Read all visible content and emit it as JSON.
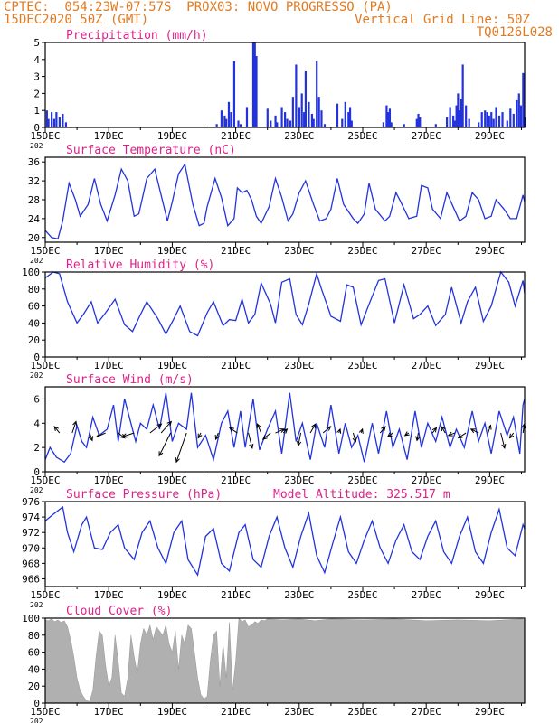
{
  "header": {
    "line1": "CPTEC:  054:23W-07:57S  PROX03: NOVO PROGRESSO (PA)",
    "line2_left": "15DEC2020 50Z (GMT)",
    "line2_right": "Vertical Grid Line: 50Z",
    "line3_right": "TQ0126L028"
  },
  "colors": {
    "header": "#e07b22",
    "title": "#e0208a",
    "line": "#2233dd",
    "bar": "#2233dd",
    "cloud": "#b0b0b0",
    "axis": "#000000"
  },
  "x_axis": {
    "tick_labels": [
      "15DEC",
      "17DEC",
      "19DEC",
      "21DEC",
      "23DEC",
      "25DEC",
      "27DEC",
      "29DEC"
    ],
    "year_fragment": "202",
    "range_days": [
      15,
      30.1
    ]
  },
  "chart_data": [
    {
      "type": "bar",
      "title": "Precipitation (mm/h)",
      "ylim": [
        0,
        5
      ],
      "yticks": [
        "0",
        "1",
        "2",
        "3",
        "4",
        "5"
      ],
      "x": [
        15.05,
        15.1,
        15.2,
        15.28,
        15.35,
        15.45,
        15.55,
        15.65,
        20.4,
        20.55,
        20.65,
        20.7,
        20.78,
        20.85,
        20.95,
        21.08,
        21.15,
        21.35,
        21.55,
        21.6,
        21.65,
        22.0,
        22.1,
        22.25,
        22.3,
        22.45,
        22.55,
        22.62,
        22.72,
        22.8,
        22.9,
        23.0,
        23.08,
        23.15,
        23.2,
        23.3,
        23.4,
        23.45,
        23.55,
        23.62,
        23.7,
        23.8,
        24.2,
        24.35,
        24.45,
        24.55,
        24.6,
        24.65,
        25.65,
        25.75,
        25.8,
        25.85,
        25.9,
        26.3,
        26.7,
        26.75,
        26.8,
        27.3,
        27.65,
        27.75,
        27.85,
        27.9,
        27.95,
        28.0,
        28.05,
        28.1,
        28.15,
        28.25,
        28.35,
        28.65,
        28.75,
        28.85,
        28.92,
        28.98,
        29.05,
        29.12,
        29.2,
        29.3,
        29.4,
        29.55,
        29.65,
        29.75,
        29.85,
        29.92,
        29.98,
        30.05,
        30.1
      ],
      "values": [
        1.0,
        0.5,
        0.9,
        0.5,
        0.9,
        0.6,
        0.8,
        0.3,
        0.2,
        1.0,
        0.7,
        0.5,
        1.5,
        0.9,
        3.9,
        0.4,
        0.2,
        1.2,
        5.0,
        5.0,
        4.2,
        1.1,
        0.4,
        0.7,
        0.3,
        1.2,
        0.9,
        0.5,
        0.4,
        1.8,
        3.7,
        1.2,
        2.0,
        0.9,
        3.3,
        1.5,
        0.8,
        0.5,
        3.9,
        1.8,
        1.0,
        0.2,
        1.4,
        0.5,
        1.5,
        0.9,
        1.2,
        0.4,
        0.3,
        1.3,
        0.9,
        1.1,
        0.3,
        0.2,
        0.5,
        0.8,
        0.6,
        0.2,
        0.6,
        1.2,
        0.7,
        0.4,
        1.3,
        2.0,
        1.0,
        1.7,
        3.7,
        1.3,
        0.5,
        0.3,
        0.9,
        1.0,
        0.9,
        0.7,
        0.9,
        0.5,
        1.2,
        0.7,
        0.9,
        0.4,
        1.1,
        0.8,
        1.6,
        2.0,
        1.3,
        3.2,
        0.6
      ]
    },
    {
      "type": "line",
      "title": "Surface Temperature (nC)",
      "ylim": [
        19,
        37
      ],
      "yticks": [
        "20",
        "24",
        "28",
        "32",
        "36"
      ],
      "x": [
        15.0,
        15.2,
        15.4,
        15.55,
        15.75,
        15.95,
        16.1,
        16.35,
        16.55,
        16.75,
        16.95,
        17.2,
        17.4,
        17.6,
        17.8,
        17.95,
        18.2,
        18.45,
        18.65,
        18.85,
        19.0,
        19.2,
        19.4,
        19.65,
        19.85,
        20.0,
        20.1,
        20.35,
        20.55,
        20.75,
        20.95,
        21.05,
        21.2,
        21.35,
        21.5,
        21.65,
        21.8,
        22.05,
        22.25,
        22.45,
        22.65,
        22.8,
        23.0,
        23.2,
        23.45,
        23.65,
        23.85,
        24.0,
        24.2,
        24.4,
        24.7,
        24.85,
        25.05,
        25.2,
        25.4,
        25.7,
        25.85,
        26.05,
        26.2,
        26.45,
        26.7,
        26.85,
        27.05,
        27.2,
        27.45,
        27.65,
        27.85,
        28.05,
        28.25,
        28.45,
        28.65,
        28.85,
        29.05,
        29.2,
        29.45,
        29.65,
        29.85,
        30.05,
        30.1
      ],
      "values": [
        21.5,
        20,
        19.7,
        23.5,
        31.5,
        28,
        24.5,
        27,
        32.5,
        27,
        23.5,
        29,
        34.5,
        32,
        24.5,
        25,
        32.5,
        34.5,
        29,
        23.5,
        27.5,
        33.5,
        35.5,
        27,
        22.5,
        23,
        26.5,
        32.5,
        28.5,
        22.5,
        24,
        30.5,
        29.5,
        30,
        28,
        24.5,
        23,
        26.5,
        32.5,
        28.5,
        23.5,
        25,
        29.5,
        32,
        27,
        23.5,
        24,
        26,
        32.5,
        27,
        24,
        23,
        25,
        31.5,
        26,
        23.5,
        24.5,
        29.5,
        27.5,
        24,
        24.5,
        31,
        30.5,
        26,
        24,
        29.5,
        26.5,
        23.5,
        24.5,
        29.5,
        28,
        24,
        24.5,
        28,
        26,
        24,
        24,
        29,
        27.5
      ]
    },
    {
      "type": "line",
      "title": "Relative Humidity (%)",
      "ylim": [
        0,
        100
      ],
      "yticks": [
        "0",
        "20",
        "40",
        "60",
        "80",
        "100"
      ],
      "x": [
        15.0,
        15.25,
        15.45,
        15.7,
        16.0,
        16.2,
        16.45,
        16.65,
        16.9,
        17.2,
        17.5,
        17.75,
        18.0,
        18.2,
        18.55,
        18.8,
        19.05,
        19.25,
        19.55,
        19.8,
        20.1,
        20.3,
        20.6,
        20.8,
        21.0,
        21.2,
        21.4,
        21.6,
        21.8,
        22.1,
        22.25,
        22.45,
        22.7,
        22.9,
        23.1,
        23.3,
        23.55,
        23.7,
        24.0,
        24.3,
        24.5,
        24.7,
        24.95,
        25.2,
        25.5,
        25.7,
        26.0,
        26.3,
        26.6,
        26.8,
        27.05,
        27.3,
        27.6,
        27.8,
        28.1,
        28.3,
        28.55,
        28.8,
        29.05,
        29.35,
        29.6,
        29.8,
        30.05,
        30.1
      ],
      "values": [
        93,
        100,
        98,
        65,
        40,
        50,
        65,
        40,
        52,
        68,
        38,
        30,
        50,
        65,
        45,
        27,
        45,
        60,
        30,
        25,
        52,
        65,
        37,
        44,
        43,
        68,
        40,
        50,
        87,
        62,
        40,
        88,
        92,
        50,
        38,
        62,
        98,
        80,
        48,
        42,
        85,
        82,
        38,
        62,
        90,
        92,
        40,
        85,
        45,
        50,
        60,
        37,
        50,
        82,
        40,
        65,
        82,
        42,
        60,
        100,
        88,
        60,
        90,
        75
      ]
    },
    {
      "type": "line",
      "title": "Surface Wind (m/s)",
      "ylim": [
        0,
        7
      ],
      "yticks": [
        "0",
        "2",
        "4",
        "6"
      ],
      "x": [
        15.0,
        15.15,
        15.35,
        15.6,
        15.8,
        16.0,
        16.15,
        16.3,
        16.5,
        16.7,
        16.95,
        17.15,
        17.3,
        17.5,
        17.65,
        17.85,
        18.0,
        18.2,
        18.4,
        18.6,
        18.8,
        19.0,
        19.2,
        19.45,
        19.6,
        19.8,
        20.05,
        20.3,
        20.55,
        20.75,
        20.95,
        21.15,
        21.3,
        21.55,
        21.75,
        22.0,
        22.25,
        22.45,
        22.7,
        22.9,
        23.1,
        23.35,
        23.55,
        23.8,
        24.0,
        24.25,
        24.45,
        24.65,
        24.85,
        25.05,
        25.3,
        25.5,
        25.75,
        25.95,
        26.15,
        26.4,
        26.65,
        26.85,
        27.05,
        27.3,
        27.5,
        27.75,
        27.95,
        28.2,
        28.45,
        28.65,
        28.85,
        29.05,
        29.3,
        29.55,
        29.75,
        29.95,
        30.05,
        30.1
      ],
      "values": [
        1.0,
        2.0,
        1.2,
        0.8,
        1.5,
        3.8,
        2.5,
        2.0,
        4.5,
        3.0,
        3.5,
        5.5,
        2.5,
        6.0,
        4.5,
        2.5,
        4.0,
        3.5,
        5.5,
        3.5,
        6.5,
        2.5,
        4.0,
        3.5,
        6.5,
        2.0,
        3.0,
        1.0,
        4.0,
        5.0,
        2.0,
        5.0,
        2.0,
        6.0,
        1.8,
        3.5,
        5.0,
        1.5,
        6.5,
        2.5,
        4.0,
        1.0,
        4.0,
        2.0,
        5.5,
        1.5,
        4.0,
        2.0,
        3.0,
        0.8,
        4.0,
        1.5,
        5.0,
        2.0,
        3.5,
        1.0,
        5.0,
        2.0,
        4.0,
        2.5,
        4.5,
        2.0,
        3.5,
        2.0,
        5.0,
        2.5,
        4.0,
        1.5,
        5.0,
        3.0,
        4.5,
        1.5,
        5.5,
        6.0
      ],
      "arrows": [
        {
          "x": 15.45,
          "u": -0.4,
          "v": 0.5
        },
        {
          "x": 15.85,
          "u": 0.3,
          "v": 0.9
        },
        {
          "x": 16.4,
          "u": 0.2,
          "v": -0.6
        },
        {
          "x": 16.9,
          "u": -0.7,
          "v": -0.3
        },
        {
          "x": 17.3,
          "u": 0.5,
          "v": -0.4
        },
        {
          "x": 17.8,
          "u": -0.9,
          "v": -0.3
        },
        {
          "x": 18.3,
          "u": 0.9,
          "v": 0.7
        },
        {
          "x": 18.65,
          "u": 0.8,
          "v": 0.9
        },
        {
          "x": 18.95,
          "u": -0.9,
          "v": -1.8
        },
        {
          "x": 19.45,
          "u": -0.8,
          "v": -2.3
        },
        {
          "x": 19.9,
          "u": -0.2,
          "v": -0.4
        },
        {
          "x": 20.45,
          "u": -0.2,
          "v": -0.5
        },
        {
          "x": 21.05,
          "u": -0.6,
          "v": 0.4
        },
        {
          "x": 21.4,
          "u": 0.3,
          "v": -1.2
        },
        {
          "x": 21.8,
          "u": -0.3,
          "v": 0.7
        },
        {
          "x": 22.1,
          "u": -0.6,
          "v": -0.5
        },
        {
          "x": 22.25,
          "u": 0.7,
          "v": 0.3
        },
        {
          "x": 22.5,
          "u": 0.3,
          "v": 0.3
        },
        {
          "x": 23.05,
          "u": -0.2,
          "v": -1.0
        },
        {
          "x": 23.35,
          "u": 0.4,
          "v": 0.7
        },
        {
          "x": 23.75,
          "u": 0.6,
          "v": 0.5
        },
        {
          "x": 24.25,
          "u": 0.1,
          "v": 0.3
        },
        {
          "x": 24.7,
          "u": 0.2,
          "v": -0.7
        },
        {
          "x": 24.95,
          "u": 0.1,
          "v": 0.3
        },
        {
          "x": 25.55,
          "u": 0.4,
          "v": 0.5
        },
        {
          "x": 25.95,
          "u": -0.4,
          "v": -0.3
        },
        {
          "x": 26.45,
          "u": -0.3,
          "v": -0.2
        },
        {
          "x": 26.75,
          "u": -0.1,
          "v": -0.6
        },
        {
          "x": 27.2,
          "u": 0.3,
          "v": 0.4
        },
        {
          "x": 27.6,
          "u": -0.3,
          "v": 0.5
        },
        {
          "x": 27.9,
          "u": -0.5,
          "v": -0.2
        },
        {
          "x": 28.25,
          "u": -0.6,
          "v": -0.4
        },
        {
          "x": 28.65,
          "u": -0.6,
          "v": 0.3
        },
        {
          "x": 28.95,
          "u": 0.2,
          "v": 0.6
        },
        {
          "x": 29.35,
          "u": 0.3,
          "v": -1.2
        },
        {
          "x": 29.75,
          "u": -0.3,
          "v": -0.4
        },
        {
          "x": 30.05,
          "u": 0.1,
          "v": 0.7
        }
      ]
    },
    {
      "type": "line",
      "title": "Surface Pressure (hPa)",
      "annotation": "Model Altitude: 325.517  m",
      "ylim": [
        965,
        976
      ],
      "yticks": [
        "966",
        "968",
        "970",
        "972",
        "974",
        "976"
      ],
      "x": [
        15.0,
        15.3,
        15.55,
        15.7,
        15.9,
        16.15,
        16.3,
        16.55,
        16.8,
        17.05,
        17.3,
        17.5,
        17.8,
        18.05,
        18.3,
        18.55,
        18.8,
        19.05,
        19.3,
        19.5,
        19.8,
        20.05,
        20.3,
        20.55,
        20.8,
        21.1,
        21.3,
        21.55,
        21.8,
        22.05,
        22.3,
        22.55,
        22.8,
        23.05,
        23.3,
        23.55,
        23.8,
        24.05,
        24.3,
        24.55,
        24.8,
        25.05,
        25.3,
        25.55,
        25.8,
        26.05,
        26.3,
        26.55,
        26.8,
        27.05,
        27.3,
        27.55,
        27.8,
        28.05,
        28.3,
        28.55,
        28.8,
        29.05,
        29.3,
        29.55,
        29.8,
        30.05,
        30.1
      ],
      "values": [
        973.5,
        974.5,
        975.3,
        972,
        969.5,
        973,
        974,
        970,
        969.8,
        972,
        973,
        970,
        968.5,
        972,
        973.5,
        970,
        968,
        972,
        973.5,
        968.5,
        966.5,
        971.5,
        972.5,
        968,
        967,
        972,
        973,
        968.5,
        967.5,
        971.5,
        974,
        970,
        967.5,
        971.5,
        974.5,
        969,
        966.8,
        970.5,
        974,
        969.5,
        968,
        971,
        973.5,
        970,
        968,
        971,
        973,
        969.5,
        968.5,
        971.5,
        973.5,
        969.5,
        968,
        971.5,
        974,
        969.5,
        968,
        972,
        975,
        970,
        969,
        973,
        972.5
      ]
    },
    {
      "type": "area",
      "title": "Cloud Cover (%)",
      "ylim": [
        0,
        100
      ],
      "yticks": [
        "0",
        "20",
        "40",
        "60",
        "80",
        "100"
      ],
      "x": [
        15.0,
        15.1,
        15.2,
        15.3,
        15.4,
        15.5,
        15.6,
        15.7,
        15.8,
        15.9,
        16.0,
        16.1,
        16.2,
        16.3,
        16.4,
        16.5,
        16.6,
        16.7,
        16.8,
        16.9,
        17.0,
        17.1,
        17.2,
        17.3,
        17.4,
        17.5,
        17.6,
        17.7,
        17.8,
        17.9,
        18.0,
        18.1,
        18.2,
        18.3,
        18.4,
        18.5,
        18.6,
        18.7,
        18.8,
        18.9,
        19.0,
        19.1,
        19.2,
        19.3,
        19.4,
        19.5,
        19.6,
        19.7,
        19.8,
        19.9,
        20.0,
        20.1,
        20.2,
        20.3,
        20.4,
        20.5,
        20.6,
        20.7,
        20.8,
        20.9,
        21.0,
        21.1,
        21.2,
        21.3,
        21.4,
        21.5,
        21.6,
        21.7,
        21.8,
        21.9,
        22.0,
        22.5,
        23.0,
        23.5,
        24.0,
        25.0,
        26.0,
        27.0,
        28.0,
        29.0,
        30.0,
        30.1
      ],
      "values": [
        98,
        97,
        99,
        96,
        98,
        95,
        97,
        90,
        75,
        55,
        30,
        15,
        8,
        3,
        2,
        15,
        55,
        85,
        80,
        45,
        20,
        30,
        80,
        50,
        12,
        8,
        30,
        80,
        55,
        35,
        70,
        88,
        80,
        92,
        75,
        90,
        85,
        80,
        92,
        70,
        60,
        85,
        40,
        80,
        70,
        92,
        88,
        60,
        30,
        10,
        5,
        8,
        50,
        80,
        85,
        20,
        70,
        30,
        95,
        15,
        50,
        100,
        96,
        98,
        90,
        92,
        96,
        94,
        98,
        97,
        99,
        98,
        99,
        97,
        99,
        98,
        99,
        97,
        98,
        97,
        99,
        98
      ]
    }
  ]
}
